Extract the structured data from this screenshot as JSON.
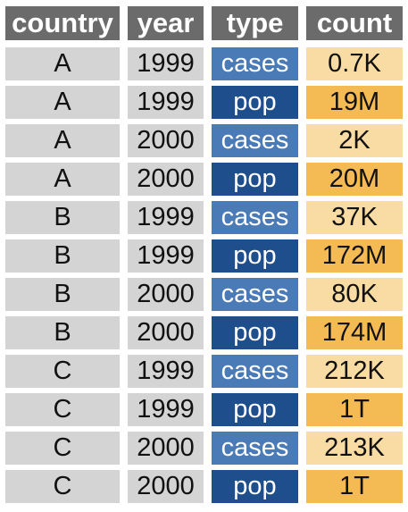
{
  "headers": {
    "country": "country",
    "year": "year",
    "type": "type",
    "count": "count"
  },
  "colors": {
    "header_bg": "#6b6b6b",
    "key_bg": "#d4d4d4",
    "cases_type_bg": "#4a7bb7",
    "pop_type_bg": "#1f4e8c",
    "cases_count_bg": "#f9dca3",
    "pop_count_bg": "#f4bb55"
  },
  "rows": [
    {
      "country": "A",
      "year": "1999",
      "type": "cases",
      "count": "0.7K"
    },
    {
      "country": "A",
      "year": "1999",
      "type": "pop",
      "count": "19M"
    },
    {
      "country": "A",
      "year": "2000",
      "type": "cases",
      "count": "2K"
    },
    {
      "country": "A",
      "year": "2000",
      "type": "pop",
      "count": "20M"
    },
    {
      "country": "B",
      "year": "1999",
      "type": "cases",
      "count": "37K"
    },
    {
      "country": "B",
      "year": "1999",
      "type": "pop",
      "count": "172M"
    },
    {
      "country": "B",
      "year": "2000",
      "type": "cases",
      "count": "80K"
    },
    {
      "country": "B",
      "year": "2000",
      "type": "pop",
      "count": "174M"
    },
    {
      "country": "C",
      "year": "1999",
      "type": "cases",
      "count": "212K"
    },
    {
      "country": "C",
      "year": "1999",
      "type": "pop",
      "count": "1T"
    },
    {
      "country": "C",
      "year": "2000",
      "type": "cases",
      "count": "213K"
    },
    {
      "country": "C",
      "year": "2000",
      "type": "pop",
      "count": "1T"
    }
  ]
}
